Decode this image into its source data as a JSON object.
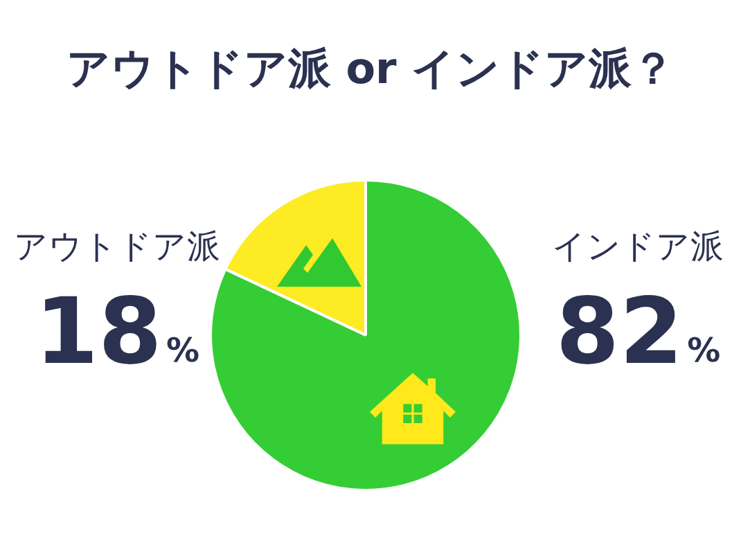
{
  "chart_data": {
    "type": "pie",
    "title": "アウトドア派 or インドア派？",
    "categories": [
      "アウトドア派",
      "インドア派"
    ],
    "values": [
      18,
      82
    ],
    "colors": [
      "#fdeb24",
      "#35cd35"
    ],
    "value_labels": [
      "18%",
      "82%"
    ]
  }
}
